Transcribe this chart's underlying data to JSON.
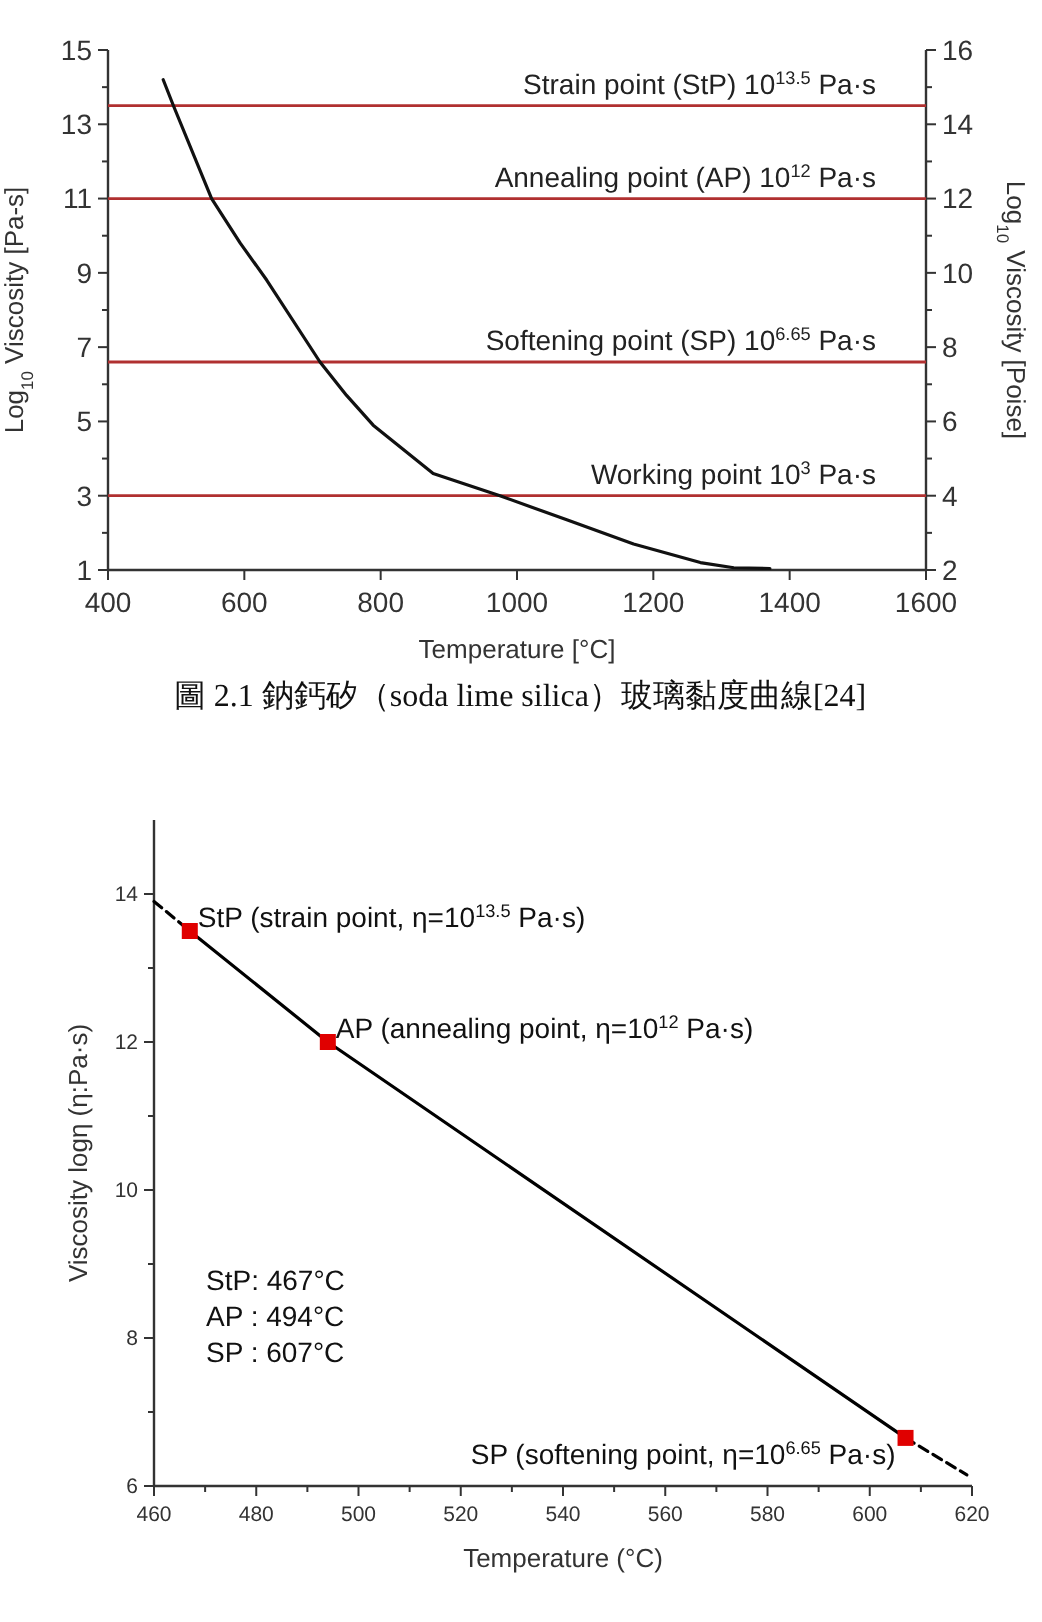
{
  "chart_data": [
    {
      "type": "line",
      "xlabel": "Temperature [°C]",
      "ylabel": "Log$_{10}$ Viscosity  [Pa-s]",
      "y2label": "Log$_{10}$ Viscosity  [Poise]",
      "x": [
        481,
        496,
        552,
        594,
        633,
        711,
        750,
        789,
        877,
        975,
        1073,
        1171,
        1269,
        1318,
        1371
      ],
      "series": [
        {
          "color": "#111111",
          "values": [
            14.2,
            13.5,
            11,
            9.8,
            8.8,
            6.6,
            5.7,
            4.9,
            3.6,
            3,
            2.35,
            1.7,
            1.2,
            1.06,
            1.04
          ]
        }
      ],
      "xlim": [
        400,
        1600
      ],
      "xticks": [
        400,
        600,
        800,
        1000,
        1200,
        1400,
        1600
      ],
      "ylim": [
        1,
        15
      ],
      "yticks": [
        1,
        {
          "value": 2,
          "label": null
        },
        3,
        {
          "value": 4,
          "label": null
        },
        5,
        {
          "value": 6,
          "label": null
        },
        7,
        {
          "value": 8,
          "label": null
        },
        9,
        {
          "value": 10,
          "label": null
        },
        11,
        {
          "value": 12,
          "label": null
        },
        13,
        {
          "value": 14,
          "label": null
        },
        15
      ],
      "y2lim": [
        2,
        16
      ],
      "y2ticks": [
        2,
        {
          "value": 3,
          "label": null
        },
        4,
        {
          "value": 5,
          "label": null
        },
        6,
        {
          "value": 7,
          "label": null
        },
        8,
        {
          "value": 9,
          "label": null
        },
        10,
        {
          "value": 11,
          "label": null
        },
        12,
        {
          "value": 13,
          "label": null
        },
        14,
        {
          "value": 15,
          "label": null
        },
        16
      ],
      "ref_lines": [
        {
          "axis": "y",
          "value": 13.5,
          "label": "Strain point (StP) 10$^{13.5}$ Pa·s",
          "color": "#b03030"
        },
        {
          "axis": "y",
          "value": 11,
          "label": "Annealing point (AP) 10$^{12}$ Pa·s",
          "color": "#b03030"
        },
        {
          "axis": "y",
          "value": 6.6,
          "label": "Softening point (SP) 10$^{6.65}$ Pa·s",
          "color": "#b03030"
        },
        {
          "axis": "y",
          "value": 3,
          "label": "Working point 10$^{3}$ Pa·s",
          "color": "#b03030"
        }
      ],
      "annotations": [
        "圖 2.1 鈉鈣矽（soda lime silica）玻璃黏度曲線[24]"
      ],
      "marker": "none",
      "line_style": "solid"
    },
    {
      "type": "line",
      "xlabel": "Temperature (°C)",
      "ylabel": "Viscosity logη (η:Pa·s)",
      "series": [
        {
          "color": "#000000",
          "x": [
            467,
            494,
            607
          ],
          "values": [
            13.5,
            12,
            6.65
          ],
          "line_style": "solid"
        },
        {
          "color": "#000000",
          "x": [
            460,
            467
          ],
          "values": [
            13.9,
            13.5
          ],
          "line_style": "dashed"
        },
        {
          "color": "#000000",
          "x": [
            607,
            619
          ],
          "values": [
            6.65,
            6.15
          ],
          "line_style": "dashed"
        },
        {
          "type": "scatter",
          "color": "#e00000",
          "x": [
            467,
            494,
            607
          ],
          "values": [
            13.5,
            12,
            6.65
          ],
          "marker": "square"
        }
      ],
      "xlim": [
        460,
        620
      ],
      "xticks": [
        460,
        {
          "value": 470,
          "label": null
        },
        480,
        {
          "value": 490,
          "label": null
        },
        500,
        {
          "value": 510,
          "label": null
        },
        520,
        {
          "value": 530,
          "label": null
        },
        540,
        {
          "value": 550,
          "label": null
        },
        560,
        {
          "value": 570,
          "label": null
        },
        580,
        {
          "value": 590,
          "label": null
        },
        600,
        {
          "value": 610,
          "label": null
        },
        620
      ],
      "ylim": [
        6,
        15
      ],
      "yticks": [
        6,
        {
          "value": 7,
          "label": null
        },
        8,
        {
          "value": 9,
          "label": null
        },
        10,
        {
          "value": 11,
          "label": null
        },
        12,
        {
          "value": 13,
          "label": null
        },
        14
      ],
      "annotations": [
        {
          "text": "StP (strain point, η=10$^{13.5}$ Pa·s)",
          "x": 467,
          "y": 13.5
        },
        {
          "text": "AP (annealing point, η=10$^{12}$ Pa·s)",
          "x": 494,
          "y": 12
        },
        {
          "text": "SP (softening point, η=10$^{6.65}$ Pa·s)",
          "x": 607,
          "y": 6.65
        },
        "StP: 467°C",
        "AP : 494°C",
        "SP : 607°C"
      ],
      "marker": "none"
    }
  ]
}
